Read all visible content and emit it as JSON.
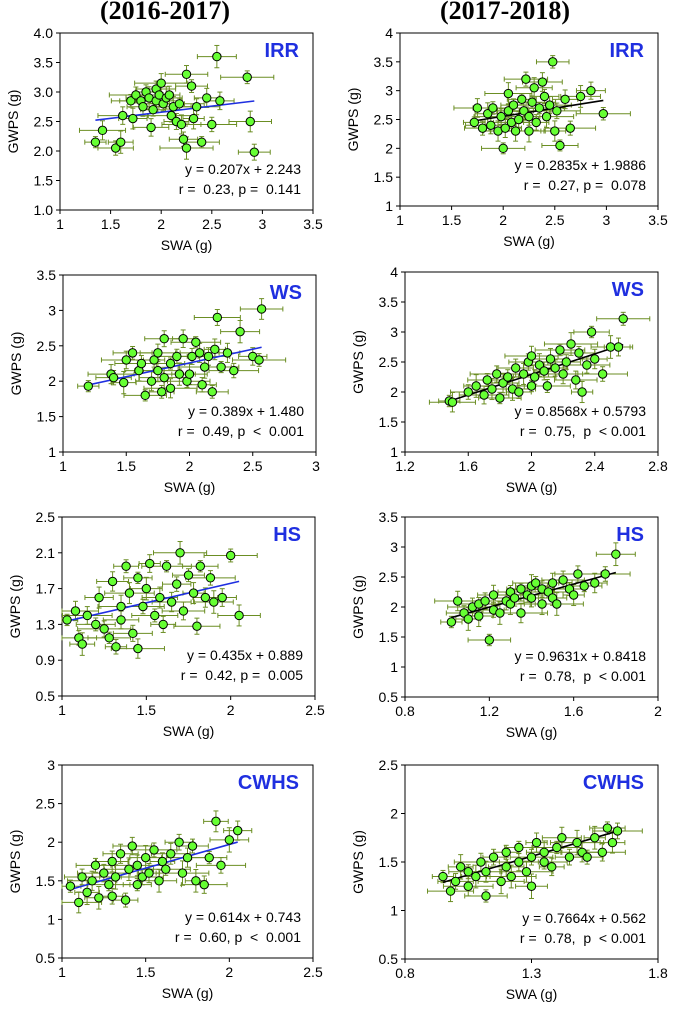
{
  "column_titles": [
    "(2016-2017)",
    "(2017-2018)"
  ],
  "colors": {
    "point_fill": "#66ff33",
    "point_stroke": "#000000",
    "error_bar": "#6b8e23",
    "trend_left": "#1f2fe0",
    "trend_right": "#000000",
    "panel_label": "#1f2fe0"
  },
  "chart_data": [
    {
      "type": "scatter",
      "panel": "IRR",
      "season": "2016-2017",
      "xlabel": "SWA (g)",
      "ylabel": "GWPS (g)",
      "xlim": [
        1,
        3.5
      ],
      "ylim": [
        1.0,
        4.0
      ],
      "xticks": [
        1,
        1.5,
        2,
        2.5,
        3,
        3.5
      ],
      "yticks": [
        1.0,
        1.5,
        2.0,
        2.5,
        3.0,
        3.5,
        4.0
      ],
      "ydecimals": 1,
      "x": [
        1.35,
        1.42,
        1.55,
        1.6,
        1.62,
        1.7,
        1.72,
        1.75,
        1.8,
        1.82,
        1.85,
        1.88,
        1.9,
        1.92,
        1.95,
        1.95,
        1.98,
        2.0,
        2.02,
        2.05,
        2.08,
        2.1,
        2.12,
        2.15,
        2.18,
        2.2,
        2.22,
        2.25,
        2.25,
        2.3,
        2.32,
        2.35,
        2.4,
        2.45,
        2.5,
        2.55,
        2.58,
        2.85,
        2.88,
        2.92
      ],
      "y": [
        2.15,
        2.35,
        2.05,
        2.15,
        2.6,
        2.85,
        2.55,
        2.95,
        2.85,
        2.75,
        3.0,
        2.9,
        2.4,
        2.7,
        2.85,
        3.05,
        2.95,
        3.15,
        2.8,
        2.9,
        2.95,
        2.6,
        2.75,
        2.5,
        2.8,
        2.45,
        2.2,
        2.05,
        3.3,
        3.1,
        2.55,
        2.75,
        2.15,
        2.9,
        2.45,
        3.6,
        2.85,
        3.25,
        2.5,
        1.98
      ],
      "trend": {
        "slope": 0.207,
        "intercept": 2.243,
        "x_range": [
          1.35,
          2.92
        ]
      },
      "equation": "y = 0.207x + 2.243",
      "stats": "r =  0.23, p =  0.141"
    },
    {
      "type": "scatter",
      "panel": "IRR",
      "season": "2017-2018",
      "xlabel": "SWA (g)",
      "ylabel": "GWPS (g)",
      "xlim": [
        1,
        3.5
      ],
      "ylim": [
        1,
        4
      ],
      "xticks": [
        1,
        1.5,
        2,
        2.5,
        3,
        3.5
      ],
      "yticks": [
        1,
        1.5,
        2,
        2.5,
        3,
        3.5,
        4
      ],
      "ydecimals": -1,
      "x": [
        1.72,
        1.75,
        1.8,
        1.85,
        1.88,
        1.9,
        1.95,
        1.98,
        2.0,
        2.02,
        2.05,
        2.05,
        2.08,
        2.1,
        2.12,
        2.15,
        2.18,
        2.2,
        2.22,
        2.25,
        2.25,
        2.28,
        2.3,
        2.32,
        2.35,
        2.38,
        2.4,
        2.42,
        2.45,
        2.48,
        2.5,
        2.52,
        2.55,
        2.6,
        2.65,
        2.75,
        2.85,
        2.97
      ],
      "y": [
        2.45,
        2.7,
        2.35,
        2.6,
        2.4,
        2.7,
        2.3,
        2.55,
        2.0,
        2.35,
        2.65,
        2.95,
        2.45,
        2.75,
        2.3,
        2.5,
        2.85,
        2.65,
        3.2,
        2.3,
        2.55,
        2.8,
        3.05,
        2.45,
        2.7,
        3.15,
        2.9,
        2.55,
        2.75,
        3.5,
        2.3,
        2.65,
        2.05,
        2.85,
        2.35,
        2.9,
        3.0,
        2.6
      ],
      "trend": {
        "slope": 0.2835,
        "intercept": 1.9886,
        "x_range": [
          1.72,
          2.97
        ]
      },
      "equation": "y = 0.2835x + 1.9886",
      "stats": "r =  0.27, p =  0.078"
    },
    {
      "type": "scatter",
      "panel": "WS",
      "season": "2016-2017",
      "xlabel": "SWA (g)",
      "ylabel": "GWPS (g)",
      "xlim": [
        1,
        3
      ],
      "ylim": [
        1,
        3.5
      ],
      "xticks": [
        1,
        1.5,
        2,
        2.5,
        3
      ],
      "yticks": [
        1,
        1.5,
        2,
        2.5,
        3,
        3.5
      ],
      "ydecimals": -1,
      "x": [
        1.2,
        1.38,
        1.4,
        1.48,
        1.5,
        1.55,
        1.6,
        1.62,
        1.65,
        1.7,
        1.72,
        1.75,
        1.75,
        1.78,
        1.8,
        1.8,
        1.85,
        1.85,
        1.9,
        1.92,
        1.95,
        1.98,
        2.0,
        2.02,
        2.05,
        2.08,
        2.1,
        2.12,
        2.15,
        2.18,
        2.2,
        2.22,
        2.25,
        2.3,
        2.35,
        2.4,
        2.5,
        2.55,
        2.57
      ],
      "y": [
        1.93,
        2.1,
        2.05,
        1.98,
        2.3,
        2.4,
        2.15,
        2.25,
        1.8,
        2.0,
        2.3,
        2.15,
        2.4,
        1.85,
        2.05,
        2.6,
        2.25,
        1.9,
        2.35,
        2.1,
        2.6,
        2.0,
        2.1,
        2.35,
        2.55,
        2.4,
        1.95,
        2.2,
        2.35,
        1.85,
        2.45,
        2.9,
        2.2,
        2.4,
        2.15,
        2.7,
        2.35,
        2.3,
        3.02
      ],
      "trend": {
        "slope": 0.389,
        "intercept": 1.48,
        "x_range": [
          1.2,
          2.57
        ]
      },
      "equation": "y = 0.389x + 1.480",
      "stats": "r =  0.49, p  <  0.001"
    },
    {
      "type": "scatter",
      "panel": "WS",
      "season": "2017-2018",
      "xlabel": "SWA (g)",
      "ylabel": "GWPS (g)",
      "xlim": [
        1.2,
        2.8
      ],
      "ylim": [
        1,
        4
      ],
      "xticks": [
        1.2,
        1.6,
        2,
        2.4,
        2.8
      ],
      "yticks": [
        1,
        1.5,
        2,
        2.5,
        3,
        3.5,
        4
      ],
      "ydecimals": -1,
      "x": [
        1.48,
        1.5,
        1.6,
        1.65,
        1.7,
        1.72,
        1.75,
        1.78,
        1.8,
        1.82,
        1.85,
        1.88,
        1.9,
        1.92,
        1.95,
        1.98,
        2.0,
        2.0,
        2.02,
        2.05,
        2.08,
        2.1,
        2.12,
        2.15,
        2.18,
        2.2,
        2.22,
        2.25,
        2.28,
        2.3,
        2.32,
        2.35,
        2.38,
        2.4,
        2.45,
        2.5,
        2.55,
        2.58
      ],
      "y": [
        1.85,
        1.83,
        2.0,
        2.1,
        1.95,
        2.2,
        2.05,
        2.3,
        1.9,
        2.15,
        2.25,
        2.05,
        2.4,
        2.0,
        2.3,
        2.5,
        2.1,
        2.6,
        2.25,
        2.45,
        2.35,
        2.1,
        2.55,
        2.4,
        2.7,
        2.3,
        2.5,
        2.8,
        2.2,
        2.65,
        2.0,
        2.45,
        3.0,
        2.55,
        2.3,
        2.75,
        2.75,
        3.22
      ],
      "trend": {
        "slope": 0.8568,
        "intercept": 0.5793,
        "x_range": [
          1.48,
          2.58
        ]
      },
      "equation": "y = 0.8568x + 0.5793",
      "stats": "r =  0.75,  p  < 0.001"
    },
    {
      "type": "scatter",
      "panel": "HS",
      "season": "2016-2017",
      "xlabel": "SWA (g)",
      "ylabel": "GWPS (g)",
      "xlim": [
        1,
        2.5
      ],
      "ylim": [
        0.5,
        2.5
      ],
      "xticks": [
        1,
        1.5,
        2,
        2.5
      ],
      "yticks": [
        0.5,
        0.9,
        1.3,
        1.7,
        2.1,
        2.5
      ],
      "ydecimals": -1,
      "x": [
        1.03,
        1.08,
        1.1,
        1.12,
        1.15,
        1.2,
        1.22,
        1.25,
        1.28,
        1.3,
        1.32,
        1.35,
        1.35,
        1.38,
        1.4,
        1.42,
        1.45,
        1.45,
        1.48,
        1.5,
        1.52,
        1.55,
        1.58,
        1.6,
        1.62,
        1.65,
        1.68,
        1.7,
        1.72,
        1.75,
        1.78,
        1.8,
        1.82,
        1.85,
        1.88,
        1.9,
        1.95,
        2.0,
        2.05
      ],
      "y": [
        1.35,
        1.45,
        1.15,
        1.08,
        1.4,
        1.3,
        1.6,
        1.25,
        1.15,
        1.78,
        1.05,
        1.5,
        1.35,
        1.95,
        1.65,
        1.2,
        1.82,
        1.03,
        1.5,
        1.7,
        1.98,
        1.4,
        1.6,
        1.3,
        1.95,
        1.55,
        1.75,
        2.1,
        1.45,
        1.85,
        1.65,
        1.28,
        1.95,
        1.6,
        1.82,
        1.55,
        1.6,
        2.07,
        1.4
      ],
      "trend": {
        "slope": 0.435,
        "intercept": 0.889,
        "x_range": [
          1.03,
          2.05
        ]
      },
      "equation": "y = 0.435x + 0.889",
      "stats": "r =  0.42, p =  0.005"
    },
    {
      "type": "scatter",
      "panel": "HS",
      "season": "2017-2018",
      "xlabel": "SWA (g)",
      "ylabel": "GWPS (g)",
      "xlim": [
        0.8,
        2
      ],
      "ylim": [
        0.5,
        3.5
      ],
      "xticks": [
        0.8,
        1.2,
        1.6,
        2
      ],
      "yticks": [
        0.5,
        1,
        1.5,
        2,
        2.5,
        3,
        3.5
      ],
      "ydecimals": -1,
      "x": [
        1.02,
        1.05,
        1.08,
        1.1,
        1.12,
        1.15,
        1.15,
        1.18,
        1.2,
        1.22,
        1.22,
        1.25,
        1.28,
        1.3,
        1.3,
        1.32,
        1.35,
        1.35,
        1.38,
        1.4,
        1.4,
        1.42,
        1.45,
        1.45,
        1.48,
        1.5,
        1.5,
        1.52,
        1.55,
        1.58,
        1.6,
        1.62,
        1.65,
        1.7,
        1.75,
        1.8
      ],
      "y": [
        1.75,
        2.1,
        1.9,
        1.8,
        2.0,
        2.05,
        1.85,
        2.1,
        1.45,
        2.2,
        1.95,
        1.9,
        2.1,
        2.25,
        2.05,
        2.15,
        2.3,
        1.9,
        2.2,
        2.35,
        2.15,
        2.4,
        2.05,
        2.3,
        2.25,
        2.4,
        2.15,
        2.05,
        2.45,
        2.3,
        2.2,
        2.55,
        2.35,
        2.4,
        2.55,
        2.88
      ],
      "trend": {
        "slope": 0.9631,
        "intercept": 0.8418,
        "x_range": [
          1.02,
          1.8
        ]
      },
      "equation": "y = 0.9631x + 0.8418",
      "stats": "r =  0.78,  p  < 0.001"
    },
    {
      "type": "scatter",
      "panel": "CWHS",
      "season": "2016-2017",
      "xlabel": "SWA (g)",
      "ylabel": "GWPS (g)",
      "xlim": [
        1,
        2.5
      ],
      "ylim": [
        0.5,
        3
      ],
      "xticks": [
        1,
        1.5,
        2,
        2.5
      ],
      "yticks": [
        0.5,
        1,
        1.5,
        2,
        2.5,
        3
      ],
      "ydecimals": -1,
      "x": [
        1.05,
        1.1,
        1.12,
        1.15,
        1.18,
        1.2,
        1.22,
        1.25,
        1.28,
        1.3,
        1.3,
        1.32,
        1.35,
        1.38,
        1.4,
        1.42,
        1.45,
        1.45,
        1.48,
        1.5,
        1.52,
        1.55,
        1.58,
        1.6,
        1.62,
        1.65,
        1.7,
        1.72,
        1.75,
        1.78,
        1.8,
        1.85,
        1.88,
        1.92,
        1.95,
        2.0,
        2.05
      ],
      "y": [
        1.43,
        1.22,
        1.55,
        1.35,
        1.5,
        1.7,
        1.28,
        1.6,
        1.45,
        1.75,
        1.3,
        1.55,
        1.85,
        1.25,
        1.65,
        1.95,
        1.45,
        1.7,
        1.55,
        1.8,
        1.6,
        1.9,
        1.5,
        1.75,
        1.65,
        1.85,
        2.0,
        1.6,
        1.8,
        1.95,
        1.5,
        1.45,
        1.8,
        2.27,
        1.7,
        2.03,
        2.15
      ],
      "trend": {
        "slope": 0.614,
        "intercept": 0.743,
        "x_range": [
          1.05,
          2.05
        ]
      },
      "equation": "y = 0.614x + 0.743",
      "stats": "r =  0.60, p  <  0.001"
    },
    {
      "type": "scatter",
      "panel": "CWHS",
      "season": "2017-2018",
      "xlabel": "SWA (g)",
      "ylabel": "GWPS (g)",
      "xlim": [
        0.8,
        1.8
      ],
      "ylim": [
        0.5,
        2.5
      ],
      "xticks": [
        0.8,
        1.3,
        1.8
      ],
      "yticks": [
        0.5,
        1,
        1.5,
        2,
        2.5
      ],
      "ydecimals": -1,
      "x": [
        0.95,
        0.98,
        1.0,
        1.02,
        1.05,
        1.05,
        1.08,
        1.1,
        1.12,
        1.12,
        1.15,
        1.18,
        1.2,
        1.2,
        1.22,
        1.25,
        1.25,
        1.28,
        1.3,
        1.3,
        1.32,
        1.35,
        1.35,
        1.38,
        1.4,
        1.42,
        1.45,
        1.48,
        1.5,
        1.52,
        1.55,
        1.58,
        1.6,
        1.62,
        1.64
      ],
      "y": [
        1.35,
        1.2,
        1.3,
        1.45,
        1.25,
        1.4,
        1.35,
        1.5,
        1.15,
        1.4,
        1.55,
        1.3,
        1.45,
        1.6,
        1.35,
        1.5,
        1.65,
        1.4,
        1.55,
        1.25,
        1.7,
        1.5,
        1.6,
        1.45,
        1.65,
        1.75,
        1.55,
        1.7,
        1.6,
        1.55,
        1.75,
        1.6,
        1.85,
        1.7,
        1.82
      ],
      "trend": {
        "slope": 0.7664,
        "intercept": 0.562,
        "x_range": [
          0.95,
          1.64
        ]
      },
      "equation": "y = 0.7664x + 0.562",
      "stats": "r =  0.78,  p  < 0.001"
    }
  ]
}
